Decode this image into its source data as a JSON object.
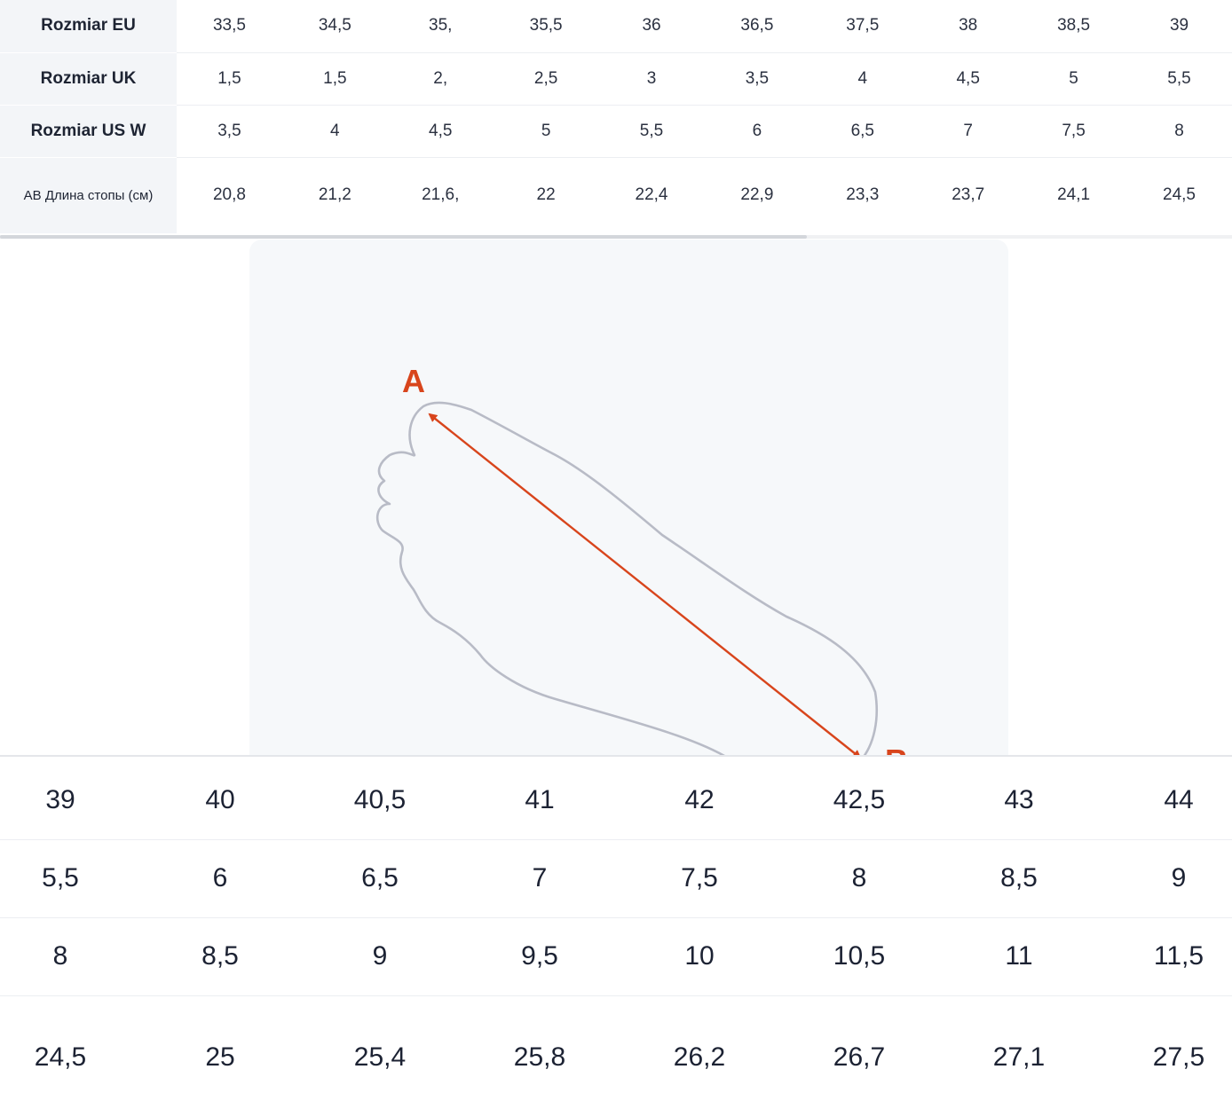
{
  "top_table": {
    "rows": [
      {
        "header": "Rozmiar EU",
        "cells": [
          "33,5",
          "34,5",
          "35,",
          "35,5",
          "36",
          "36,5",
          "37,5",
          "38",
          "38,5",
          "39"
        ]
      },
      {
        "header": "Rozmiar UK",
        "cells": [
          "1,5",
          "1,5",
          "2,",
          "2,5",
          "3",
          "3,5",
          "4",
          "4,5",
          "5",
          "5,5"
        ]
      },
      {
        "header": "Rozmiar US W",
        "cells": [
          "3,5",
          "4",
          "4,5",
          "5",
          "5,5",
          "6",
          "6,5",
          "7",
          "7,5",
          "8"
        ]
      },
      {
        "header": "AB Длина стопы (см)",
        "cells": [
          "20,8",
          "21,2",
          "21,6,",
          "22",
          "22,4",
          "22,9",
          "23,3",
          "23,7",
          "24,1",
          "24,5"
        ]
      }
    ]
  },
  "illustration": {
    "label_a": "A",
    "label_b": "B",
    "arrow_color": "#d8451c",
    "outline_color": "#b8bbc6"
  },
  "bottom_table": {
    "rows": [
      [
        "39",
        "40",
        "40,5",
        "41",
        "42",
        "42,5",
        "43",
        "44"
      ],
      [
        "5,5",
        "6",
        "6,5",
        "7",
        "7,5",
        "8",
        "8,5",
        "9"
      ],
      [
        "8",
        "8,5",
        "9",
        "9,5",
        "10",
        "10,5",
        "11",
        "11,5"
      ],
      [
        "24,5",
        "25",
        "25,4",
        "25,8",
        "26,2",
        "26,7",
        "27,1",
        "27,5"
      ]
    ]
  }
}
